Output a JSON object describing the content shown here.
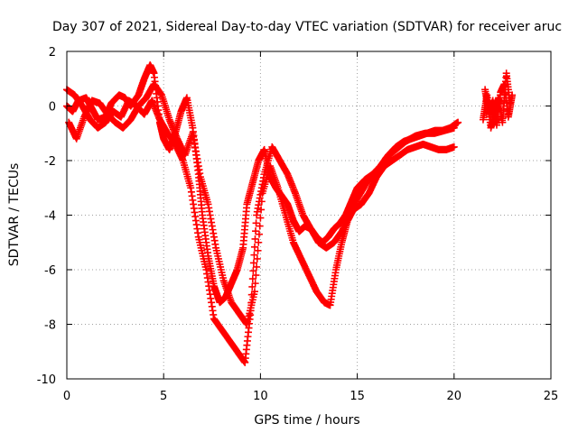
{
  "chart_data": {
    "type": "scatter",
    "title": "Day 307 of 2021, Sidereal Day-to-day VTEC variation (SDTVAR) for receiver aruc",
    "xlabel": "GPS time / hours",
    "ylabel": "SDTVAR / TECUs",
    "xlim": [
      0,
      25
    ],
    "ylim": [
      -10,
      2
    ],
    "xticks": [
      "0",
      "5",
      "10",
      "15",
      "20",
      "25"
    ],
    "yticks": [
      "-10",
      "-8",
      "-6",
      "-4",
      "-2",
      "0",
      "2"
    ],
    "grid": true,
    "marker": "+",
    "color": "#ff0000",
    "series": [
      {
        "x": [
          0.0,
          0.3,
          0.6,
          1.0,
          1.3,
          1.6,
          2.0,
          2.3,
          2.7,
          3.0,
          3.3,
          3.7,
          4.0,
          4.3,
          4.5,
          4.8,
          5.0,
          5.3,
          5.6,
          5.9,
          6.2,
          6.5,
          6.8,
          7.0,
          7.3,
          7.6,
          7.9,
          8.2,
          8.5,
          8.8,
          9.1,
          9.3,
          9.6,
          9.9,
          10.2,
          10.5,
          10.8,
          11.1,
          11.4,
          11.7,
          12.0,
          12.3,
          12.6,
          12.9,
          13.2,
          13.5,
          13.8,
          14.1,
          14.4,
          14.7,
          15.0,
          15.4,
          15.8,
          16.2,
          16.6,
          17.0,
          17.4,
          17.8,
          18.2,
          18.6,
          19.0,
          19.4,
          19.8,
          20.2
        ],
        "y": [
          0.0,
          -0.2,
          0.2,
          0.3,
          -0.1,
          -0.5,
          -0.4,
          0.1,
          0.4,
          0.3,
          0.0,
          0.4,
          1.0,
          1.5,
          1.2,
          -0.6,
          -1.2,
          -1.6,
          -1.0,
          -0.2,
          0.3,
          -0.8,
          -2.5,
          -4.0,
          -5.5,
          -6.6,
          -7.2,
          -7.0,
          -6.5,
          -6.0,
          -5.2,
          -3.6,
          -2.8,
          -2.0,
          -1.6,
          -2.6,
          -3.0,
          -3.3,
          -3.6,
          -4.2,
          -4.6,
          -4.4,
          -4.5,
          -4.8,
          -5.0,
          -4.8,
          -4.5,
          -4.3,
          -4.0,
          -3.5,
          -3.0,
          -2.7,
          -2.5,
          -2.2,
          -1.8,
          -1.5,
          -1.3,
          -1.2,
          -1.1,
          -1.0,
          -0.9,
          -0.9,
          -0.8,
          -0.6
        ]
      },
      {
        "x": [
          0.0,
          0.4,
          0.8,
          1.2,
          1.6,
          2.0,
          2.4,
          2.8,
          3.2,
          3.6,
          4.0,
          4.4,
          4.8,
          5.2,
          5.6,
          6.0,
          6.4,
          6.8,
          7.2,
          7.6,
          8.0,
          8.4,
          8.8,
          9.2,
          9.5,
          9.8,
          10.2,
          10.6,
          11.0,
          11.4,
          11.8,
          12.2,
          12.6,
          13.0,
          13.4,
          13.8,
          14.2,
          14.6,
          15.0,
          15.5,
          16.0,
          16.5,
          17.0,
          17.5,
          18.0,
          18.5,
          19.0,
          19.5,
          20.0
        ],
        "y": [
          0.6,
          0.4,
          0.0,
          -0.5,
          -0.8,
          -0.6,
          -0.2,
          -0.4,
          0.2,
          0.0,
          -0.3,
          0.2,
          -0.5,
          -1.0,
          -1.4,
          -2.0,
          -3.0,
          -4.8,
          -6.0,
          -7.8,
          -8.2,
          -8.6,
          -9.0,
          -9.4,
          -7.5,
          -4.0,
          -2.5,
          -1.5,
          -2.0,
          -2.5,
          -3.2,
          -4.0,
          -4.5,
          -5.0,
          -5.2,
          -5.0,
          -4.6,
          -4.0,
          -3.4,
          -2.8,
          -2.4,
          -1.9,
          -1.6,
          -1.3,
          -1.1,
          -1.0,
          -1.0,
          -0.9,
          -0.8
        ]
      },
      {
        "x": [
          0.1,
          0.5,
          0.9,
          1.3,
          1.7,
          2.1,
          2.5,
          2.9,
          3.3,
          3.7,
          4.1,
          4.5,
          4.9,
          5.3,
          5.7,
          6.1,
          6.5,
          6.9,
          7.3,
          7.7,
          8.1,
          8.5,
          8.9,
          9.3,
          9.7,
          10.1,
          10.5,
          10.9,
          11.3,
          11.7,
          12.1,
          12.5,
          12.9,
          13.3,
          13.6,
          13.9,
          14.2,
          14.5,
          14.8,
          15.2,
          15.6,
          16.0,
          16.4,
          16.8,
          17.2,
          17.6,
          18.0,
          18.4,
          18.8,
          19.2,
          19.6,
          20.0
        ],
        "y": [
          -0.6,
          -1.2,
          -0.4,
          0.2,
          0.1,
          -0.3,
          -0.6,
          -0.8,
          -0.5,
          0.0,
          0.3,
          0.8,
          0.4,
          -0.5,
          -1.2,
          -1.8,
          -1.0,
          -2.6,
          -3.6,
          -5.2,
          -6.4,
          -7.2,
          -7.6,
          -8.0,
          -6.8,
          -3.2,
          -2.2,
          -3.0,
          -4.0,
          -5.0,
          -5.6,
          -6.2,
          -6.8,
          -7.2,
          -7.3,
          -6.0,
          -5.0,
          -4.2,
          -3.8,
          -3.6,
          -3.2,
          -2.6,
          -2.2,
          -2.0,
          -1.8,
          -1.6,
          -1.5,
          -1.4,
          -1.5,
          -1.6,
          -1.6,
          -1.5
        ]
      },
      {
        "x": [
          21.5,
          21.7,
          21.9,
          22.1,
          22.3,
          22.5,
          22.7,
          22.9
        ],
        "y": [
          -0.5,
          0.4,
          -0.8,
          -0.2,
          0.3,
          -0.6,
          1.2,
          0.0
        ]
      },
      {
        "x": [
          21.6,
          21.8,
          22.0,
          22.2,
          22.4,
          22.6,
          22.8,
          23.0
        ],
        "y": [
          0.6,
          -0.3,
          0.2,
          -0.7,
          0.5,
          0.8,
          -0.4,
          0.4
        ]
      }
    ]
  }
}
